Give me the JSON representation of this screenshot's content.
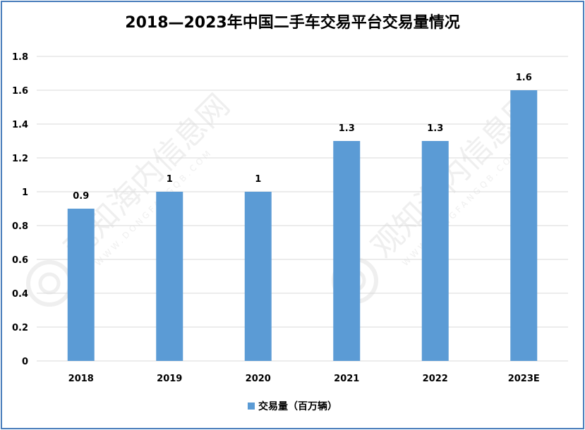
{
  "chart_data": {
    "type": "bar",
    "title": "2018—2023年中国二手车交易平台交易量情况",
    "categories": [
      "2018",
      "2019",
      "2020",
      "2021",
      "2022",
      "2023E"
    ],
    "series": [
      {
        "name": "交易量（百万辆）",
        "values": [
          0.9,
          1,
          1,
          1.3,
          1.3,
          1.6
        ],
        "labels": [
          "0.9",
          "1",
          "1",
          "1.3",
          "1.3",
          "1.6"
        ]
      }
    ],
    "y_ticks": [
      "0",
      "0.2",
      "0.4",
      "0.6",
      "0.8",
      "1",
      "1.2",
      "1.4",
      "1.6",
      "1.8"
    ],
    "ylim": [
      0,
      1.8
    ],
    "xlabel": "",
    "ylabel": "",
    "grid": true,
    "legend_position": "bottom"
  },
  "colors": {
    "bar": "#5b9bd5",
    "frame": "#4a7ebb",
    "grid": "#d9d9d9"
  },
  "watermark": {
    "text": "观知海内信息网",
    "subtext": "WWW.DONGFANGQB.COM"
  }
}
